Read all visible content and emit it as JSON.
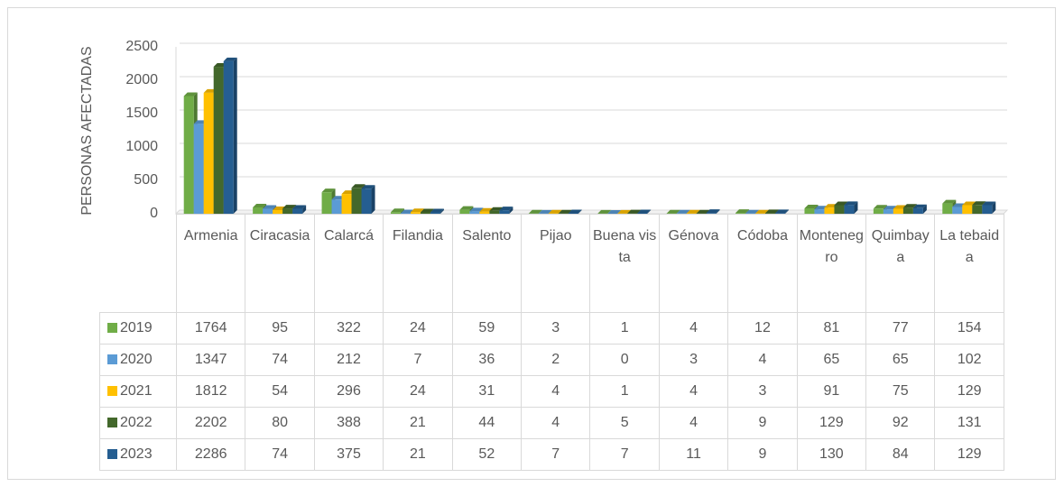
{
  "chart_data": {
    "type": "bar",
    "ylabel": "PERSONAS AFECTADAS",
    "categories": [
      "Armenia",
      "Ciracasia",
      "Calarcá",
      "Filandia",
      "Salento",
      "Pijao",
      "Buena vista",
      "Génova",
      "Códoba",
      "Montenegro",
      "Quimbaya",
      "La tebaida"
    ],
    "series": [
      {
        "name": "2019",
        "color": "#70ad47",
        "values": [
          1764,
          95,
          322,
          24,
          59,
          3,
          1,
          4,
          12,
          81,
          77,
          154
        ]
      },
      {
        "name": "2020",
        "color": "#5b9bd5",
        "values": [
          1347,
          74,
          212,
          7,
          36,
          2,
          0,
          3,
          4,
          65,
          65,
          102
        ]
      },
      {
        "name": "2021",
        "color": "#ffc000",
        "values": [
          1812,
          54,
          296,
          24,
          31,
          4,
          1,
          4,
          3,
          91,
          75,
          129
        ]
      },
      {
        "name": "2022",
        "color": "#43682b",
        "values": [
          2202,
          80,
          388,
          21,
          44,
          4,
          5,
          4,
          9,
          129,
          92,
          131
        ]
      },
      {
        "name": "2023",
        "color": "#255e91",
        "values": [
          2286,
          74,
          375,
          21,
          52,
          7,
          7,
          11,
          9,
          130,
          84,
          129
        ]
      }
    ],
    "ylim": [
      0,
      2500
    ],
    "yticks": [
      0,
      500,
      1000,
      1500,
      2000,
      2500
    ],
    "grid": true
  }
}
